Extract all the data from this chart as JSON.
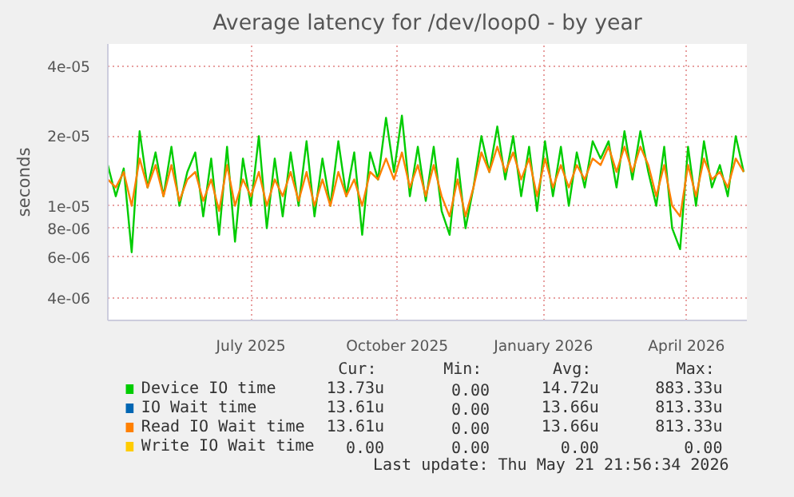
{
  "chart_data": {
    "type": "line",
    "title": "Average latency for /dev/loop0 - by year",
    "ylabel": "seconds",
    "log": true,
    "grid": true,
    "legend": "bottom",
    "xlim": [
      "2025-04-02",
      "2026-05-09"
    ],
    "ylim": [
      3.2e-06,
      5e-05
    ],
    "xticks": [
      {
        "value": "2025-07-01",
        "label": "July 2025"
      },
      {
        "value": "2025-10-01",
        "label": "October 2025"
      },
      {
        "value": "2026-01-01",
        "label": "January 2026"
      },
      {
        "value": "2026-04-01",
        "label": "April 2026"
      }
    ],
    "yticks": [
      {
        "value": 4e-06,
        "label": "4e-06"
      },
      {
        "value": 6e-06,
        "label": "6e-06"
      },
      {
        "value": 8e-06,
        "label": "8e-06"
      },
      {
        "value": 1e-05,
        "label": "1e-05"
      },
      {
        "value": 2e-05,
        "label": "2e-05"
      },
      {
        "value": 4e-05,
        "label": "4e-05"
      }
    ],
    "x": [
      "2025-04-02",
      "2025-04-07",
      "2025-04-12",
      "2025-04-17",
      "2025-04-22",
      "2025-04-27",
      "2025-05-02",
      "2025-05-07",
      "2025-05-12",
      "2025-05-17",
      "2025-05-22",
      "2025-05-27",
      "2025-06-01",
      "2025-06-06",
      "2025-06-11",
      "2025-06-16",
      "2025-06-21",
      "2025-06-26",
      "2025-07-01",
      "2025-07-06",
      "2025-07-11",
      "2025-07-16",
      "2025-07-21",
      "2025-07-26",
      "2025-07-31",
      "2025-08-05",
      "2025-08-10",
      "2025-08-15",
      "2025-08-20",
      "2025-08-25",
      "2025-08-30",
      "2025-09-04",
      "2025-09-09",
      "2025-09-14",
      "2025-09-19",
      "2025-09-24",
      "2025-09-29",
      "2025-10-04",
      "2025-10-09",
      "2025-10-14",
      "2025-10-19",
      "2025-10-24",
      "2025-10-29",
      "2025-11-03",
      "2025-11-08",
      "2025-11-13",
      "2025-11-18",
      "2025-11-23",
      "2025-11-28",
      "2025-12-03",
      "2025-12-08",
      "2025-12-13",
      "2025-12-18",
      "2025-12-23",
      "2025-12-28",
      "2026-01-02",
      "2026-01-07",
      "2026-01-12",
      "2026-01-17",
      "2026-01-22",
      "2026-01-27",
      "2026-02-01",
      "2026-02-06",
      "2026-02-11",
      "2026-02-16",
      "2026-02-21",
      "2026-02-26",
      "2026-03-03",
      "2026-03-08",
      "2026-03-13",
      "2026-03-18",
      "2026-03-23",
      "2026-03-28",
      "2026-04-02",
      "2026-04-07",
      "2026-04-12",
      "2026-04-17",
      "2026-04-22",
      "2026-04-27",
      "2026-05-02",
      "2026-05-07"
    ],
    "series": [
      {
        "name": "Device IO time",
        "color": "#00cc00",
        "values": [
          1.5e-05,
          1.1e-05,
          1.45e-05,
          6.3e-06,
          2.1e-05,
          1.2e-05,
          1.7e-05,
          1.1e-05,
          1.8e-05,
          1e-05,
          1.4e-05,
          1.7e-05,
          9e-06,
          1.6e-05,
          7.5e-06,
          1.8e-05,
          7e-06,
          1.6e-05,
          1e-05,
          2e-05,
          8e-06,
          1.6e-05,
          9e-06,
          1.7e-05,
          1e-05,
          1.9e-05,
          9e-06,
          1.6e-05,
          1e-05,
          1.9e-05,
          1.1e-05,
          1.7e-05,
          7.5e-06,
          1.7e-05,
          1.3e-05,
          2.4e-05,
          1.4e-05,
          2.45e-05,
          1.1e-05,
          1.8e-05,
          1.05e-05,
          1.8e-05,
          9.5e-06,
          7.5e-06,
          1.6e-05,
          8e-06,
          1.2e-05,
          2e-05,
          1.4e-05,
          2.2e-05,
          1.3e-05,
          2e-05,
          1.1e-05,
          1.8e-05,
          9.5e-06,
          1.9e-05,
          1.1e-05,
          1.8e-05,
          1e-05,
          1.7e-05,
          1.2e-05,
          1.9e-05,
          1.6e-05,
          1.9e-05,
          1.2e-05,
          2.1e-05,
          1.3e-05,
          2.1e-05,
          1.4e-05,
          1e-05,
          1.8e-05,
          8e-06,
          6.5e-06,
          1.8e-05,
          1e-05,
          1.9e-05,
          1.2e-05,
          1.5e-05,
          1.1e-05,
          2e-05,
          1.4e-05
        ]
      },
      {
        "name": "IO Wait time",
        "color": "#0066b3",
        "values": [
          null,
          null,
          null,
          null,
          null,
          null,
          null,
          null,
          null,
          null,
          null,
          null,
          null,
          null,
          null,
          null,
          null,
          null,
          null,
          null,
          null,
          null,
          null,
          null,
          null,
          null,
          null,
          null,
          null,
          null,
          null,
          null,
          null,
          null,
          null,
          null,
          null,
          null,
          null,
          null,
          null,
          null,
          null,
          null,
          null,
          null,
          null,
          null,
          null,
          null,
          null,
          null,
          null,
          null,
          null,
          null,
          null,
          null,
          null,
          null,
          null,
          null,
          null,
          null,
          null,
          null,
          null,
          null,
          null,
          null,
          null,
          null,
          null,
          null,
          null,
          null,
          null,
          null,
          null,
          null,
          null
        ]
      },
      {
        "name": "Read IO Wait time",
        "color": "#ff8000",
        "values": [
          1.3e-05,
          1.2e-05,
          1.4e-05,
          1e-05,
          1.6e-05,
          1.2e-05,
          1.5e-05,
          1.1e-05,
          1.5e-05,
          1.05e-05,
          1.3e-05,
          1.4e-05,
          1.05e-05,
          1.3e-05,
          9.5e-06,
          1.5e-05,
          1e-05,
          1.3e-05,
          1.1e-05,
          1.4e-05,
          1e-05,
          1.3e-05,
          1.1e-05,
          1.4e-05,
          1.05e-05,
          1.4e-05,
          1e-05,
          1.3e-05,
          1e-05,
          1.4e-05,
          1.1e-05,
          1.3e-05,
          1e-05,
          1.4e-05,
          1.3e-05,
          1.6e-05,
          1.3e-05,
          1.7e-05,
          1.2e-05,
          1.5e-05,
          1.1e-05,
          1.5e-05,
          1.1e-05,
          9e-06,
          1.3e-05,
          9e-06,
          1.2e-05,
          1.7e-05,
          1.4e-05,
          1.8e-05,
          1.4e-05,
          1.7e-05,
          1.3e-05,
          1.6e-05,
          1.1e-05,
          1.6e-05,
          1.2e-05,
          1.5e-05,
          1.2e-05,
          1.5e-05,
          1.3e-05,
          1.6e-05,
          1.5e-05,
          1.8e-05,
          1.4e-05,
          1.8e-05,
          1.4e-05,
          1.8e-05,
          1.5e-05,
          1.1e-05,
          1.5e-05,
          1e-05,
          9e-06,
          1.5e-05,
          1.1e-05,
          1.6e-05,
          1.3e-05,
          1.4e-05,
          1.2e-05,
          1.6e-05,
          1.4e-05
        ]
      },
      {
        "name": "Write IO Wait time",
        "color": "#ffcc00",
        "values": [
          null,
          null,
          null,
          null,
          null,
          null,
          null,
          null,
          null,
          null,
          null,
          null,
          null,
          null,
          null,
          null,
          null,
          null,
          null,
          null,
          null,
          null,
          null,
          null,
          null,
          null,
          null,
          null,
          null,
          null,
          null,
          null,
          null,
          null,
          null,
          null,
          null,
          null,
          null,
          null,
          null,
          null,
          null,
          null,
          null,
          null,
          null,
          null,
          null,
          null,
          null,
          null,
          null,
          null,
          null,
          null,
          null,
          null,
          null,
          null,
          null,
          null,
          null,
          null,
          null,
          null,
          null,
          null,
          null,
          null,
          null,
          null,
          null,
          null,
          null,
          null,
          null,
          null,
          null,
          null,
          null
        ]
      }
    ],
    "annotations": [
      "Cur:",
      "Min:",
      "Avg:",
      "Max:",
      "13.73u",
      "0.00",
      "14.72u",
      "883.33u",
      "13.61u",
      "0.00",
      "13.66u",
      "813.33u",
      "13.61u",
      "0.00",
      "13.66u",
      "813.33u",
      "0.00",
      "0.00",
      "0.00",
      "0.00",
      "Last update: Thu May 21 21:56:34 2026"
    ]
  }
}
